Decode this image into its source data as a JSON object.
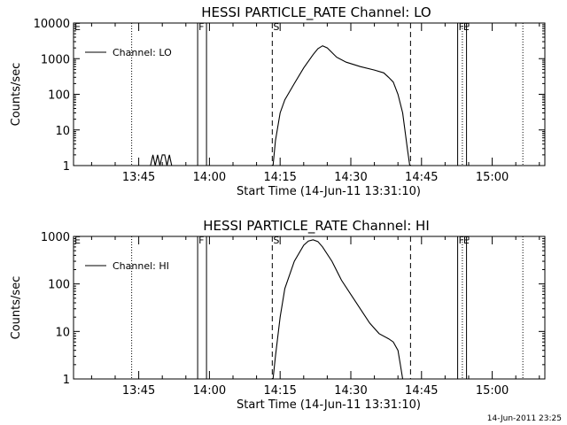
{
  "footer_stamp": "14-Jun-2011 23:25",
  "chart_data": [
    {
      "type": "line",
      "title": "HESSI PARTICLE_RATE Channel: LO",
      "xlabel": "Start Time (14-Jun-11 13:31:10)",
      "ylabel": "Counts/sec",
      "y_scale": "log",
      "ylim": [
        1,
        10000
      ],
      "xlim": [
        "13:31:10",
        "15:11:10"
      ],
      "x_ticks": [
        "13:45",
        "14:00",
        "14:15",
        "14:30",
        "14:45",
        "15:00"
      ],
      "y_ticks": [
        "1",
        "10",
        "100",
        "1000",
        "10000"
      ],
      "legend": "top-left",
      "series": [
        {
          "name": "Channel: LO",
          "x": [
            "13:31:10",
            "13:44:00",
            "13:47:30",
            "13:48:00",
            "13:48:30",
            "13:49:00",
            "13:49:30",
            "13:50:00",
            "13:50:30",
            "13:51:00",
            "13:51:30",
            "13:52:00",
            "13:53:00",
            "14:00:00",
            "14:13:30",
            "14:14:00",
            "14:15:00",
            "14:16:00",
            "14:18:00",
            "14:20:00",
            "14:22:00",
            "14:23:00",
            "14:24:00",
            "14:25:00",
            "14:27:00",
            "14:29:00",
            "14:32:00",
            "14:35:00",
            "14:37:00",
            "14:38:00",
            "14:39:00",
            "14:40:00",
            "14:41:00",
            "14:42:00",
            "14:42:30",
            "14:50:00",
            "15:11:10"
          ],
          "y": [
            1,
            1,
            1,
            2,
            1,
            2,
            1,
            2,
            2,
            1,
            2,
            1,
            1,
            1,
            1,
            5,
            30,
            70,
            200,
            550,
            1300,
            1900,
            2300,
            2000,
            1100,
            800,
            600,
            480,
            400,
            300,
            220,
            100,
            30,
            3,
            1,
            1,
            1
          ]
        }
      ],
      "markers": [
        {
          "label": "F",
          "time": "13:57:30",
          "style": "solid-pair"
        },
        {
          "label": "S",
          "time": "14:13:20",
          "style": "dashed"
        },
        {
          "label": "",
          "time": "14:42:40",
          "style": "dashed"
        },
        {
          "label": "F",
          "time": "14:52:40",
          "style": "solid-pair"
        },
        {
          "label": "E",
          "time": "14:53:40",
          "style": "dotted"
        },
        {
          "label": "",
          "time": "13:43:30",
          "style": "dotted"
        },
        {
          "label": "",
          "time": "15:06:30",
          "style": "dotted"
        },
        {
          "label": "E",
          "time": "13:31:10",
          "style": "edge"
        }
      ]
    },
    {
      "type": "line",
      "title": "HESSI PARTICLE_RATE Channel: HI",
      "xlabel": "Start Time (14-Jun-11 13:31:10)",
      "ylabel": "Counts/sec",
      "y_scale": "log",
      "ylim": [
        1,
        1000
      ],
      "xlim": [
        "13:31:10",
        "15:11:10"
      ],
      "x_ticks": [
        "13:45",
        "14:00",
        "14:15",
        "14:30",
        "14:45",
        "15:00"
      ],
      "y_ticks": [
        "1",
        "10",
        "100",
        "1000"
      ],
      "legend": "top-left",
      "series": [
        {
          "name": "Channel: HI",
          "x": [
            "13:31:10",
            "14:13:30",
            "14:14:00",
            "14:15:00",
            "14:16:00",
            "14:18:00",
            "14:20:00",
            "14:21:00",
            "14:22:00",
            "14:23:00",
            "14:24:00",
            "14:26:00",
            "14:28:00",
            "14:30:00",
            "14:32:00",
            "14:34:00",
            "14:36:00",
            "14:38:00",
            "14:39:00",
            "14:40:00",
            "14:40:30",
            "14:41:00",
            "15:11:10"
          ],
          "y": [
            1,
            1,
            3,
            20,
            80,
            300,
            650,
            800,
            850,
            780,
            600,
            300,
            120,
            60,
            30,
            15,
            9,
            7,
            6,
            4,
            2,
            1,
            1
          ]
        }
      ],
      "markers": [
        {
          "label": "F",
          "time": "13:57:30",
          "style": "solid-pair"
        },
        {
          "label": "S",
          "time": "14:13:20",
          "style": "dashed"
        },
        {
          "label": "",
          "time": "14:42:40",
          "style": "dashed"
        },
        {
          "label": "F",
          "time": "14:52:40",
          "style": "solid-pair"
        },
        {
          "label": "E",
          "time": "14:53:40",
          "style": "dotted"
        },
        {
          "label": "",
          "time": "13:43:30",
          "style": "dotted"
        },
        {
          "label": "",
          "time": "15:06:30",
          "style": "dotted"
        },
        {
          "label": "E",
          "time": "13:31:10",
          "style": "edge"
        }
      ]
    }
  ]
}
